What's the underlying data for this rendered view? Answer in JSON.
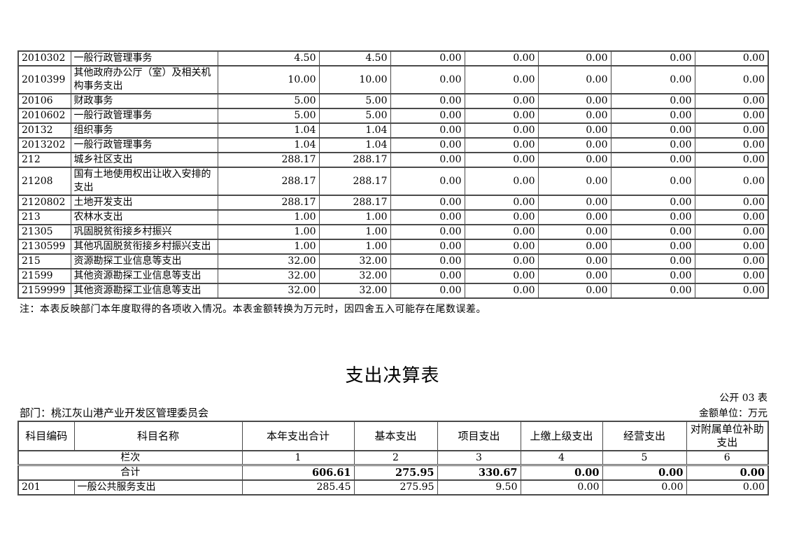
{
  "income_table": {
    "note": "注：本表反映部门本年度取得的各项收入情况。本表金额转换为万元时，因四舍五入可能存在尾数误差。",
    "rows": [
      {
        "code": "2010302",
        "name": "一般行政管理事务",
        "values": [
          "4.50",
          "4.50",
          "0.00",
          "0.00",
          "0.00",
          "0.00",
          "0.00"
        ]
      },
      {
        "code": "2010399",
        "name": "其他政府办公厅（室）及相关机构事务支出",
        "values": [
          "10.00",
          "10.00",
          "0.00",
          "0.00",
          "0.00",
          "0.00",
          "0.00"
        ]
      },
      {
        "code": "20106",
        "name": "财政事务",
        "values": [
          "5.00",
          "5.00",
          "0.00",
          "0.00",
          "0.00",
          "0.00",
          "0.00"
        ]
      },
      {
        "code": "2010602",
        "name": "一般行政管理事务",
        "values": [
          "5.00",
          "5.00",
          "0.00",
          "0.00",
          "0.00",
          "0.00",
          "0.00"
        ]
      },
      {
        "code": "20132",
        "name": "组织事务",
        "values": [
          "1.04",
          "1.04",
          "0.00",
          "0.00",
          "0.00",
          "0.00",
          "0.00"
        ]
      },
      {
        "code": "2013202",
        "name": "一般行政管理事务",
        "values": [
          "1.04",
          "1.04",
          "0.00",
          "0.00",
          "0.00",
          "0.00",
          "0.00"
        ]
      },
      {
        "code": "212",
        "name": "城乡社区支出",
        "values": [
          "288.17",
          "288.17",
          "0.00",
          "0.00",
          "0.00",
          "0.00",
          "0.00"
        ]
      },
      {
        "code": "21208",
        "name": "国有土地使用权出让收入安排的支出",
        "values": [
          "288.17",
          "288.17",
          "0.00",
          "0.00",
          "0.00",
          "0.00",
          "0.00"
        ]
      },
      {
        "code": "2120802",
        "name": "土地开发支出",
        "values": [
          "288.17",
          "288.17",
          "0.00",
          "0.00",
          "0.00",
          "0.00",
          "0.00"
        ]
      },
      {
        "code": "213",
        "name": "农林水支出",
        "values": [
          "1.00",
          "1.00",
          "0.00",
          "0.00",
          "0.00",
          "0.00",
          "0.00"
        ]
      },
      {
        "code": "21305",
        "name": "巩固脱贫衔接乡村振兴",
        "values": [
          "1.00",
          "1.00",
          "0.00",
          "0.00",
          "0.00",
          "0.00",
          "0.00"
        ]
      },
      {
        "code": "2130599",
        "name": "其他巩固脱贫衔接乡村振兴支出",
        "values": [
          "1.00",
          "1.00",
          "0.00",
          "0.00",
          "0.00",
          "0.00",
          "0.00"
        ]
      },
      {
        "code": "215",
        "name": "资源勘探工业信息等支出",
        "values": [
          "32.00",
          "32.00",
          "0.00",
          "0.00",
          "0.00",
          "0.00",
          "0.00"
        ]
      },
      {
        "code": "21599",
        "name": "其他资源勘探工业信息等支出",
        "values": [
          "32.00",
          "32.00",
          "0.00",
          "0.00",
          "0.00",
          "0.00",
          "0.00"
        ]
      },
      {
        "code": "2159999",
        "name": "其他资源勘探工业信息等支出",
        "values": [
          "32.00",
          "32.00",
          "0.00",
          "0.00",
          "0.00",
          "0.00",
          "0.00"
        ]
      }
    ]
  },
  "expense_section": {
    "title": "支出决算表",
    "table_code": "公开 03 表",
    "department": "部门：桃江灰山港产业开发区管理委员会",
    "unit": "金额单位：万元",
    "headers": [
      "科目编码",
      "科目名称",
      "本年支出合计",
      "基本支出",
      "项目支出",
      "上缴上级支出",
      "经营支出",
      "对附属单位补助支出"
    ],
    "lane_label": "栏次",
    "lane_numbers": [
      "1",
      "2",
      "3",
      "4",
      "5",
      "6"
    ],
    "total_label": "合计",
    "total_values": [
      "606.61",
      "275.95",
      "330.67",
      "0.00",
      "0.00",
      "0.00"
    ],
    "rows": [
      {
        "code": "201",
        "name": "一般公共服务支出",
        "values": [
          "285.45",
          "275.95",
          "9.50",
          "0.00",
          "0.00",
          "0.00"
        ]
      }
    ]
  }
}
